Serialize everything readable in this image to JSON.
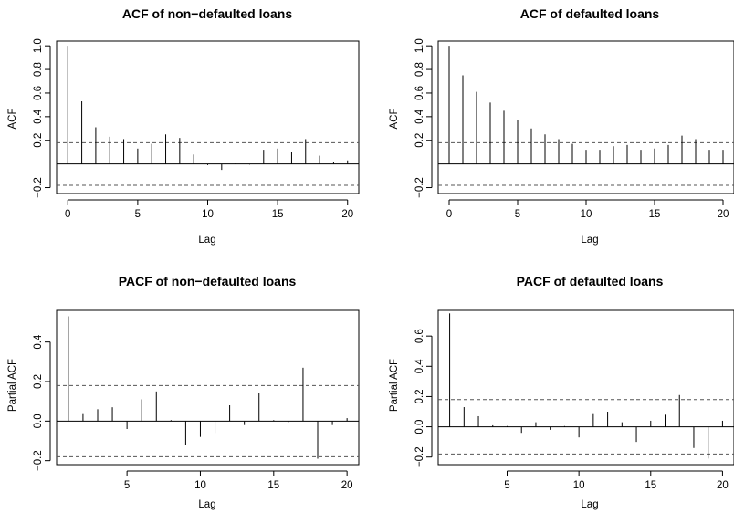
{
  "chart_data": [
    {
      "type": "bar",
      "title": "ACF of non−defaulted loans",
      "xlabel": "Lag",
      "ylabel": "ACF",
      "x": [
        0,
        1,
        2,
        3,
        4,
        5,
        6,
        7,
        8,
        9,
        10,
        11,
        12,
        13,
        14,
        15,
        16,
        17,
        18,
        19,
        20
      ],
      "values": [
        1.0,
        0.53,
        0.31,
        0.23,
        0.21,
        0.13,
        0.17,
        0.25,
        0.22,
        0.08,
        -0.01,
        -0.05,
        0.005,
        -0.005,
        0.12,
        0.13,
        0.1,
        0.21,
        0.07,
        0.015,
        0.03
      ],
      "xlim": [
        -0.8,
        20.8
      ],
      "ylim": [
        -0.25,
        1.04
      ],
      "xticks": [
        0,
        5,
        10,
        15,
        20
      ],
      "yticks": [
        -0.2,
        0.2,
        0.4,
        0.6,
        0.8,
        1.0
      ],
      "tick_labels": {
        "x": [
          "0",
          "5",
          "10",
          "15",
          "20"
        ],
        "y": [
          "−0.2",
          "0.2",
          "0.4",
          "0.6",
          "0.8",
          "1.0"
        ]
      },
      "confidence_band": 0.18
    },
    {
      "type": "bar",
      "title": "ACF of defaulted loans",
      "xlabel": "Lag",
      "ylabel": "ACF",
      "x": [
        0,
        1,
        2,
        3,
        4,
        5,
        6,
        7,
        8,
        9,
        10,
        11,
        12,
        13,
        14,
        15,
        16,
        17,
        18,
        19,
        20
      ],
      "values": [
        1.0,
        0.75,
        0.61,
        0.52,
        0.45,
        0.37,
        0.3,
        0.25,
        0.21,
        0.17,
        0.12,
        0.12,
        0.15,
        0.16,
        0.12,
        0.13,
        0.16,
        0.24,
        0.21,
        0.12,
        0.12
      ],
      "xlim": [
        -0.8,
        20.8
      ],
      "ylim": [
        -0.25,
        1.04
      ],
      "xticks": [
        0,
        5,
        10,
        15,
        20
      ],
      "yticks": [
        -0.2,
        0.2,
        0.4,
        0.6,
        0.8,
        1.0
      ],
      "tick_labels": {
        "x": [
          "0",
          "5",
          "10",
          "15",
          "20"
        ],
        "y": [
          "−0.2",
          "0.2",
          "0.4",
          "0.6",
          "0.8",
          "1.0"
        ]
      },
      "confidence_band": 0.18
    },
    {
      "type": "bar",
      "title": "PACF of non−defaulted loans",
      "xlabel": "Lag",
      "ylabel": "Partial ACF",
      "x": [
        1,
        2,
        3,
        4,
        5,
        6,
        7,
        8,
        9,
        10,
        11,
        12,
        13,
        14,
        15,
        16,
        17,
        18,
        19,
        20
      ],
      "values": [
        0.53,
        0.04,
        0.06,
        0.07,
        -0.04,
        0.11,
        0.15,
        0.005,
        -0.12,
        -0.08,
        -0.06,
        0.08,
        -0.02,
        0.14,
        0.005,
        -0.005,
        0.27,
        -0.19,
        -0.02,
        0.015
      ],
      "xlim": [
        0.2,
        20.8
      ],
      "ylim": [
        -0.22,
        0.56
      ],
      "xticks": [
        5,
        10,
        15,
        20
      ],
      "yticks": [
        -0.2,
        0.0,
        0.2,
        0.4
      ],
      "tick_labels": {
        "x": [
          "5",
          "10",
          "15",
          "20"
        ],
        "y": [
          "−0.2",
          "0.0",
          "0.2",
          "0.4"
        ]
      },
      "confidence_band": 0.18
    },
    {
      "type": "bar",
      "title": "PACF of defaulted loans",
      "xlabel": "Lag",
      "ylabel": "Partial ACF",
      "x": [
        1,
        2,
        3,
        4,
        5,
        6,
        7,
        8,
        9,
        10,
        11,
        12,
        13,
        14,
        15,
        16,
        17,
        18,
        19,
        20
      ],
      "values": [
        0.75,
        0.13,
        0.07,
        0.01,
        0.005,
        -0.04,
        0.03,
        -0.02,
        0.005,
        -0.07,
        0.09,
        0.1,
        0.03,
        -0.1,
        0.04,
        0.08,
        0.21,
        -0.14,
        -0.21,
        0.04
      ],
      "xlim": [
        0.2,
        20.8
      ],
      "ylim": [
        -0.25,
        0.77
      ],
      "xticks": [
        5,
        10,
        15,
        20
      ],
      "yticks": [
        -0.2,
        0.0,
        0.2,
        0.4,
        0.6
      ],
      "tick_labels": {
        "x": [
          "5",
          "10",
          "15",
          "20"
        ],
        "y": [
          "−0.2",
          "0.0",
          "0.2",
          "0.4",
          "0.6"
        ]
      },
      "confidence_band": 0.18
    }
  ]
}
